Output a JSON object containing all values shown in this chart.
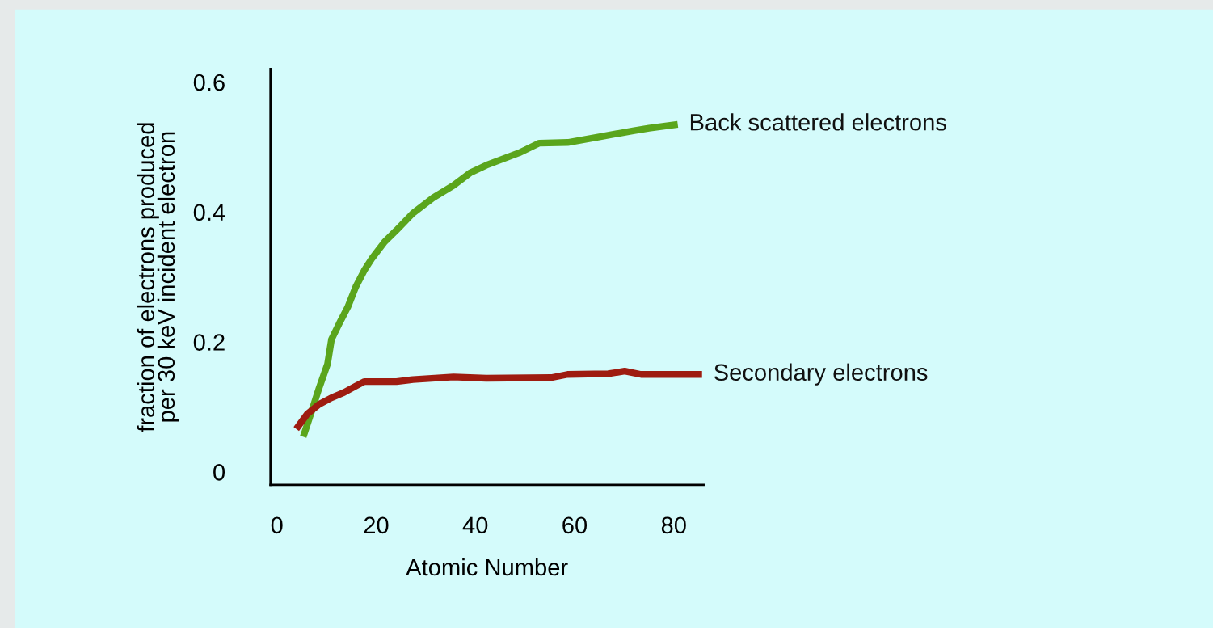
{
  "chart_data": {
    "type": "line",
    "xlabel": "Atomic Number",
    "ylabel": "fraction of electrons produced\nper 30 keV incident electron",
    "xlim": [
      -1.3,
      86
    ],
    "ylim": [
      -0.02,
      0.62
    ],
    "xticks": [
      0,
      20,
      40,
      60,
      80
    ],
    "yticks": [
      0,
      0.2,
      0.4,
      0.6
    ],
    "grid": false,
    "legend": false,
    "marker": "none",
    "line_style": "solid",
    "series": [
      {
        "name": "Back scattered electrons",
        "color": "#5aa51c",
        "x": [
          5.3,
          6.9,
          8.5,
          10.2,
          11,
          12.6,
          14.3,
          15.9,
          17.6,
          19.2,
          21.7,
          24.1,
          27.4,
          31.5,
          35.6,
          38.9,
          42.2,
          48.8,
          52.9,
          58.6,
          65.2,
          71.8,
          75,
          80.8
        ],
        "values": [
          0.054,
          0.091,
          0.129,
          0.166,
          0.204,
          0.229,
          0.254,
          0.285,
          0.31,
          0.329,
          0.354,
          0.372,
          0.398,
          0.422,
          0.441,
          0.46,
          0.472,
          0.491,
          0.506,
          0.507,
          0.516,
          0.525,
          0.529,
          0.535
        ]
      },
      {
        "name": "Secondary electrons",
        "color": "#9e1c10",
        "x": [
          3.9,
          6.1,
          8.5,
          11,
          13.5,
          15.9,
          17.6,
          20.9,
          24.1,
          27.4,
          35.6,
          42.2,
          55.3,
          58.6,
          66.8,
          70.1,
          73.4,
          85.7
        ],
        "values": [
          0.066,
          0.089,
          0.104,
          0.114,
          0.122,
          0.132,
          0.139,
          0.139,
          0.139,
          0.142,
          0.146,
          0.144,
          0.145,
          0.15,
          0.151,
          0.155,
          0.15,
          0.15
        ]
      }
    ]
  }
}
